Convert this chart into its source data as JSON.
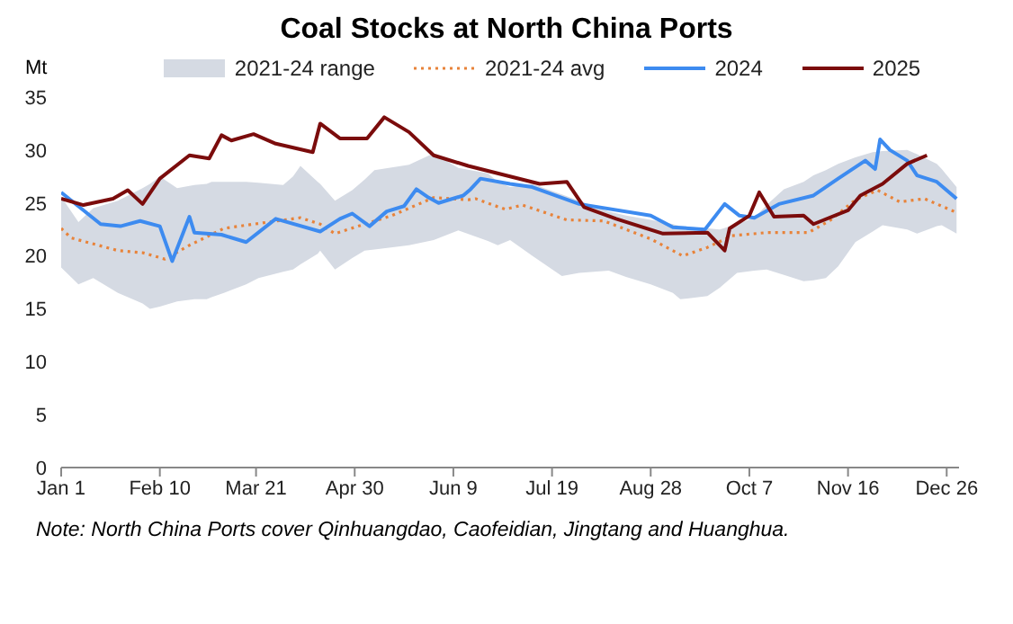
{
  "chart_data": {
    "type": "line",
    "title": "Coal Stocks at North China Ports",
    "ylabel": "Mt",
    "xlim": [
      "--01-01",
      "--12-31"
    ],
    "xticks": [
      {
        "value": "--01-01",
        "label": "Jan 1"
      },
      {
        "value": "--02-10",
        "label": "Feb 10"
      },
      {
        "value": "--03-21",
        "label": "Mar 21"
      },
      {
        "value": "--04-30",
        "label": "Apr 30"
      },
      {
        "value": "--06-09",
        "label": "Jun 9"
      },
      {
        "value": "--07-19",
        "label": "Jul 19"
      },
      {
        "value": "--08-28",
        "label": "Aug 28"
      },
      {
        "value": "--10-07",
        "label": "Oct 7"
      },
      {
        "value": "--11-16",
        "label": "Nov 16"
      },
      {
        "value": "--12-26",
        "label": "Dec 26"
      }
    ],
    "ylim": [
      0,
      35
    ],
    "yticks": [
      0,
      5,
      10,
      15,
      20,
      25,
      30,
      35
    ],
    "legend": "top",
    "series": [
      {
        "name": "2021-24 range",
        "type": "area",
        "color": "#d5dae3",
        "x": [
          "--01-01",
          "--01-08",
          "--01-14",
          "--01-24",
          "--02-03",
          "--02-06",
          "--02-10",
          "--02-17",
          "--02-24",
          "--03-01",
          "--03-03",
          "--03-08",
          "--03-17",
          "--03-22",
          "--04-01",
          "--04-05",
          "--04-08",
          "--04-15",
          "--04-16",
          "--04-22",
          "--04-29",
          "--05-04",
          "--05-08",
          "--05-22",
          "--06-01",
          "--06-11",
          "--06-23",
          "--06-27",
          "--07-02",
          "--07-11",
          "--07-23",
          "--07-30",
          "--08-11",
          "--08-18",
          "--08-28",
          "--09-06",
          "--09-09",
          "--09-20",
          "--09-25",
          "--10-02",
          "--10-09",
          "--10-14",
          "--10-21",
          "--10-29",
          "--11-02",
          "--11-07",
          "--11-12",
          "--11-19",
          "--11-26",
          "--11-30",
          "--12-10",
          "--12-14",
          "--12-22",
          "--12-24",
          "--12-30"
        ],
        "values": [
          null,
          null,
          null,
          null,
          null,
          null,
          null,
          null,
          null,
          null,
          null,
          null,
          null,
          null,
          null,
          null,
          null,
          null,
          null,
          null,
          null,
          null,
          null,
          null,
          null,
          null,
          null,
          null,
          null,
          null,
          null,
          null,
          null,
          null,
          null,
          null,
          null,
          null,
          null,
          null,
          null,
          null,
          null,
          null,
          null,
          null,
          null,
          null,
          null,
          null,
          null,
          null,
          null,
          null,
          null
        ],
        "upper": [
          25.6,
          23.2,
          24.5,
          25.2,
          26.4,
          26.8,
          27.5,
          26.4,
          26.7,
          26.8,
          27.0,
          27.0,
          27.0,
          26.9,
          26.7,
          27.5,
          28.5,
          27.0,
          26.8,
          25.2,
          26.2,
          27.2,
          28.1,
          28.6,
          29.7,
          28.3,
          27.8,
          27.0,
          26.5,
          26.8,
          25.8,
          25.2,
          24.2,
          23.8,
          23.4,
          23.0,
          22.8,
          22.6,
          22.5,
          23.0,
          23.6,
          24.8,
          26.3,
          27.0,
          27.6,
          28.1,
          28.7,
          29.3,
          29.8,
          29.9,
          30.0,
          29.6,
          28.7,
          28.2,
          26.5
        ],
        "lower": [
          18.9,
          17.3,
          17.9,
          16.5,
          15.5,
          15.0,
          15.2,
          15.7,
          15.9,
          15.9,
          16.1,
          16.5,
          17.3,
          17.9,
          18.5,
          18.7,
          19.2,
          20.2,
          20.5,
          18.7,
          19.8,
          20.5,
          20.6,
          21.0,
          21.5,
          22.4,
          21.4,
          21.0,
          21.5,
          20.0,
          18.1,
          18.4,
          18.6,
          18.0,
          17.3,
          16.5,
          15.9,
          16.2,
          17.0,
          18.4,
          18.6,
          18.7,
          18.2,
          17.6,
          17.7,
          17.9,
          19.0,
          21.3,
          22.3,
          22.9,
          22.5,
          22.1,
          22.8,
          22.9,
          22.1
        ]
      },
      {
        "name": "2021-24 avg",
        "type": "line",
        "line_style": "dotted",
        "color": "#e8833a",
        "x": [
          "--01-01",
          "--01-05",
          "--01-24",
          "--02-03",
          "--02-12",
          "--02-22",
          "--03-08",
          "--03-20",
          "--04-08",
          "--04-16",
          "--04-22",
          "--05-04",
          "--05-15",
          "--06-01",
          "--06-15",
          "--06-18",
          "--06-30",
          "--07-07",
          "--07-25",
          "--08-09",
          "--08-28",
          "--09-10",
          "--09-20",
          "--09-30",
          "--10-14",
          "--10-31",
          "--11-09",
          "--11-19",
          "--11-28",
          "--12-07",
          "--12-17",
          "--12-30"
        ],
        "values": [
          22.6,
          21.7,
          20.5,
          20.3,
          19.7,
          21.0,
          22.6,
          23.0,
          23.6,
          23.0,
          22.1,
          23.0,
          23.8,
          25.5,
          25.3,
          25.4,
          24.4,
          24.8,
          23.4,
          23.3,
          21.6,
          20.0,
          20.8,
          21.9,
          22.2,
          22.2,
          23.4,
          25.3,
          26.2,
          25.1,
          25.4,
          24.1
        ]
      },
      {
        "name": "2024",
        "type": "line",
        "line_style": "solid",
        "color": "#3d8bf0",
        "x": [
          "--01-01",
          "--01-17",
          "--01-25",
          "--02-02",
          "--02-10",
          "--02-15",
          "--02-22",
          "--02-24",
          "--03-07",
          "--03-17",
          "--03-29",
          "--04-16",
          "--04-24",
          "--04-29",
          "--05-06",
          "--05-13",
          "--05-20",
          "--05-25",
          "--05-30",
          "--06-03",
          "--06-13",
          "--06-16",
          "--06-20",
          "--07-02",
          "--07-11",
          "--07-30",
          "--08-28",
          "--09-06",
          "--09-19",
          "--09-27",
          "--10-03",
          "--10-09",
          "--10-19",
          "--11-02",
          "--11-12",
          "--11-23",
          "--11-27",
          "--11-29",
          "--12-03",
          "--12-10",
          "--12-14",
          "--12-22",
          "--12-30"
        ],
        "values": [
          26.0,
          23.0,
          22.8,
          23.3,
          22.8,
          19.5,
          23.7,
          22.2,
          22.0,
          21.3,
          23.5,
          22.3,
          23.5,
          24.0,
          22.8,
          24.2,
          24.7,
          26.3,
          25.5,
          25.0,
          25.7,
          26.3,
          27.3,
          26.8,
          26.5,
          24.9,
          23.8,
          22.7,
          22.5,
          24.9,
          23.8,
          23.6,
          24.9,
          25.7,
          27.3,
          29.0,
          28.2,
          31.0,
          30.0,
          29.0,
          27.6,
          27.0,
          25.4
        ]
      },
      {
        "name": "2025",
        "type": "line",
        "line_style": "solid",
        "color": "#7b0c0c",
        "x": [
          "--01-01",
          "--01-10",
          "--01-22",
          "--01-28",
          "--02-03",
          "--02-10",
          "--02-22",
          "--03-02",
          "--03-07",
          "--03-11",
          "--03-20",
          "--03-29",
          "--04-13",
          "--04-16",
          "--04-24",
          "--05-05",
          "--05-12",
          "--05-22",
          "--06-01",
          "--06-15",
          "--07-02",
          "--07-14",
          "--07-25",
          "--08-01",
          "--08-14",
          "--09-02",
          "--09-20",
          "--09-27",
          "--09-29",
          "--10-07",
          "--10-11",
          "--10-17",
          "--10-29",
          "--11-02",
          "--11-16",
          "--11-21",
          "--11-30",
          "--12-10",
          "--12-18"
        ],
        "values": [
          25.4,
          24.8,
          25.4,
          26.2,
          24.9,
          27.3,
          29.5,
          29.2,
          31.4,
          30.9,
          31.5,
          30.6,
          29.8,
          32.5,
          31.1,
          31.1,
          33.1,
          31.7,
          29.5,
          28.5,
          27.5,
          26.8,
          27.0,
          24.6,
          23.5,
          22.1,
          22.2,
          20.5,
          22.6,
          23.8,
          26.0,
          23.7,
          23.8,
          23.0,
          24.3,
          25.7,
          26.8,
          28.7,
          29.5
        ]
      }
    ],
    "annotations": [
      "Note: North China Ports cover Qinhuangdao, Caofeidian, Jingtang and Huanghua."
    ]
  }
}
